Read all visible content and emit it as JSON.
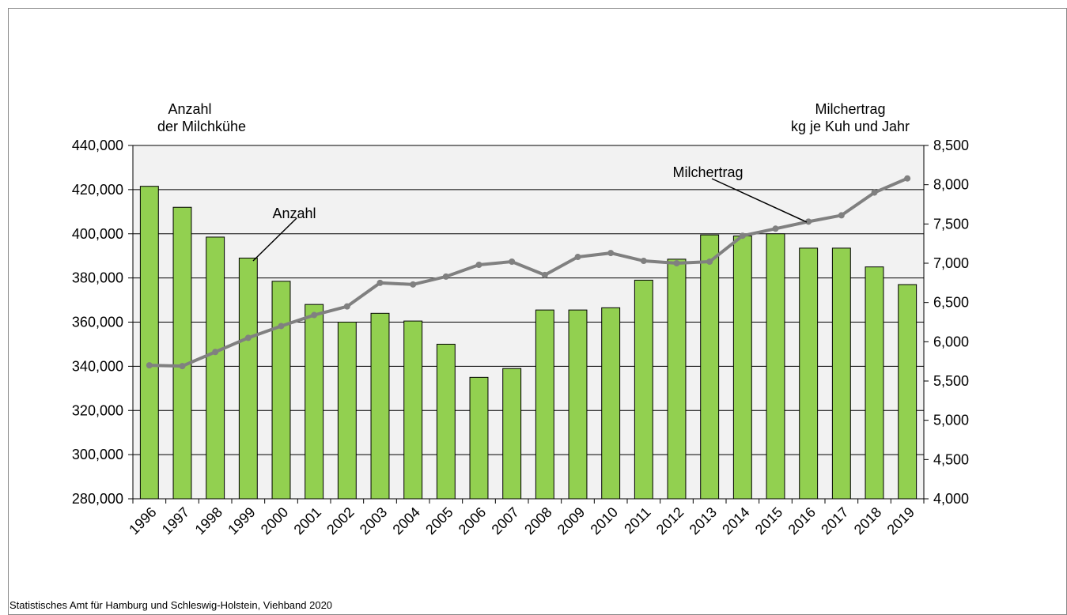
{
  "chart_data": {
    "type": "bar_line",
    "y_label_lines": [
      "Anzahl",
      "der Milchkühe"
    ],
    "y2_label_lines": [
      "Milchertrag",
      "kg je Kuh und Jahr"
    ],
    "source": "Statistisches Amt für Hamburg und Schleswig-Holstein,  Viehband 2020",
    "categories": [
      "1996",
      "1997",
      "1998",
      "1999",
      "2000",
      "2001",
      "2002",
      "2003",
      "2004",
      "2005",
      "2006",
      "2007",
      "2008",
      "2009",
      "2010",
      "2011",
      "2012",
      "2013",
      "2014",
      "2015",
      "2016",
      "2017",
      "2018",
      "2019"
    ],
    "series": [
      {
        "name": "Anzahl",
        "type": "bar",
        "color": "#92d050",
        "axis": "y",
        "values": [
          421500,
          412000,
          398500,
          389000,
          378500,
          368000,
          360000,
          364000,
          360500,
          350000,
          335000,
          339000,
          365500,
          365500,
          366500,
          379000,
          388500,
          399500,
          399000,
          400000,
          393500,
          393500,
          385000,
          377000
        ]
      },
      {
        "name": "Milchertrag",
        "type": "line",
        "color": "#808080",
        "axis": "y2",
        "values": [
          5700,
          5690,
          5870,
          6050,
          6200,
          6340,
          6450,
          6750,
          6730,
          6830,
          6980,
          7020,
          6850,
          7080,
          7130,
          7030,
          7000,
          7020,
          7350,
          7440,
          7530,
          7610,
          7900,
          8080
        ]
      }
    ],
    "ylim": [
      280000,
      440000
    ],
    "yticks": [
      {
        "value": 280000,
        "label": "280,000"
      },
      {
        "value": 300000,
        "label": "300,000"
      },
      {
        "value": 320000,
        "label": "320,000"
      },
      {
        "value": 340000,
        "label": "340,000"
      },
      {
        "value": 360000,
        "label": "360,000"
      },
      {
        "value": 380000,
        "label": "380,000"
      },
      {
        "value": 400000,
        "label": "400,000"
      },
      {
        "value": 420000,
        "label": "420,000"
      },
      {
        "value": 440000,
        "label": "440,000"
      }
    ],
    "y2lim": [
      4000,
      8500
    ],
    "y2ticks": [
      {
        "value": 4000,
        "label": "4,000"
      },
      {
        "value": 4500,
        "label": "4,500"
      },
      {
        "value": 5000,
        "label": "5,000"
      },
      {
        "value": 5500,
        "label": "5,500"
      },
      {
        "value": 6000,
        "label": "6,000"
      },
      {
        "value": 6500,
        "label": "6,500"
      },
      {
        "value": 7000,
        "label": "7,000"
      },
      {
        "value": 7500,
        "label": "7,500"
      },
      {
        "value": 8000,
        "label": "8,000"
      },
      {
        "value": 8500,
        "label": "8,500"
      }
    ],
    "grid": true
  }
}
